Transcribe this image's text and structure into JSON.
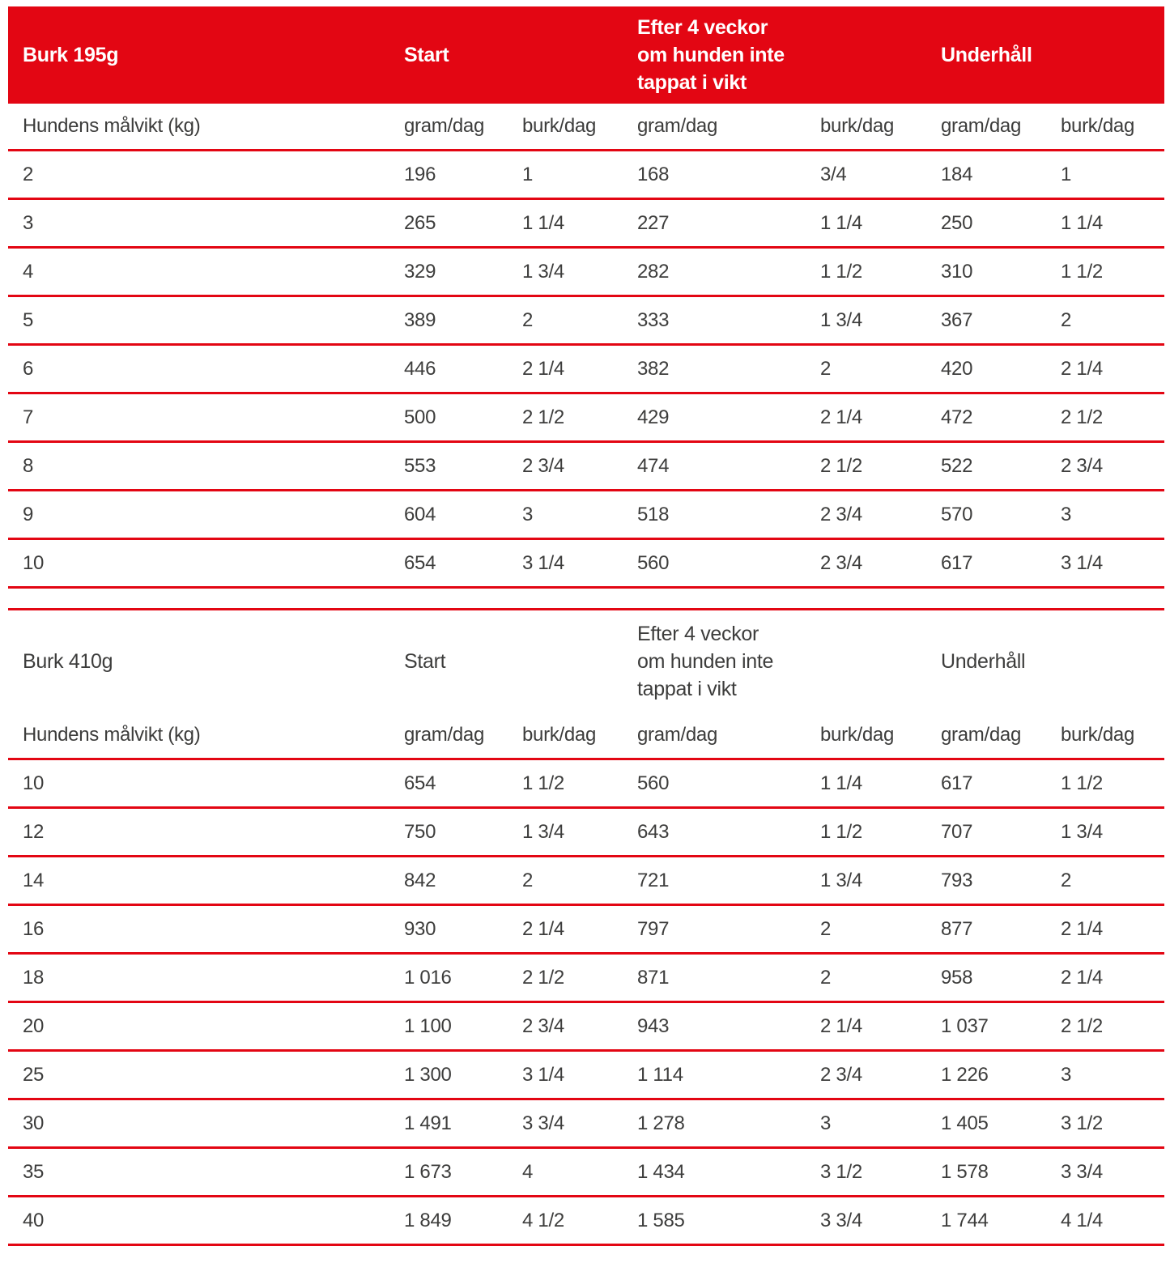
{
  "colors": {
    "accent_red": "#e30613",
    "text_dark": "#3d3d3c",
    "header_text_on_red": "#ffffff"
  },
  "chart_data": [
    {
      "type": "table",
      "title": "Burk 195g",
      "header": {
        "title": "Burk 195g",
        "start": "Start",
        "after_lines": [
          "Efter 4 veckor",
          "om hunden inte",
          "tappat i vikt"
        ],
        "maintenance": "Underhåll"
      },
      "subheader": {
        "weight_label": "Hundens målvikt (kg)",
        "units": [
          "gram/dag",
          "burk/dag",
          "gram/dag",
          "burk/dag",
          "gram/dag",
          "burk/dag"
        ]
      },
      "rows": [
        [
          "2",
          "196",
          "1",
          "168",
          "3/4",
          "184",
          "1"
        ],
        [
          "3",
          "265",
          "1 1/4",
          "227",
          "1 1/4",
          "250",
          "1 1/4"
        ],
        [
          "4",
          "329",
          "1 3/4",
          "282",
          "1 1/2",
          "310",
          "1 1/2"
        ],
        [
          "5",
          "389",
          "2",
          "333",
          "1 3/4",
          "367",
          "2"
        ],
        [
          "6",
          "446",
          "2 1/4",
          "382",
          "2",
          "420",
          "2 1/4"
        ],
        [
          "7",
          "500",
          "2 1/2",
          "429",
          "2 1/4",
          "472",
          "2 1/2"
        ],
        [
          "8",
          "553",
          "2 3/4",
          "474",
          "2 1/2",
          "522",
          "2 3/4"
        ],
        [
          "9",
          "604",
          "3",
          "518",
          "2 3/4",
          "570",
          "3"
        ],
        [
          "10",
          "654",
          "3 1/4",
          "560",
          "2 3/4",
          "617",
          "3 1/4"
        ]
      ]
    },
    {
      "type": "table",
      "title": "Burk 410g",
      "header": {
        "title": "Burk 410g",
        "start": "Start",
        "after_lines": [
          "Efter 4 veckor",
          "om hunden inte",
          "tappat i vikt"
        ],
        "maintenance": "Underhåll"
      },
      "subheader": {
        "weight_label": "Hundens målvikt (kg)",
        "units": [
          "gram/dag",
          "burk/dag",
          "gram/dag",
          "burk/dag",
          "gram/dag",
          "burk/dag"
        ]
      },
      "rows": [
        [
          "10",
          "654",
          "1 1/2",
          "560",
          "1 1/4",
          "617",
          "1 1/2"
        ],
        [
          "12",
          "750",
          "1 3/4",
          "643",
          "1 1/2",
          "707",
          "1 3/4"
        ],
        [
          "14",
          "842",
          "2",
          "721",
          "1 3/4",
          "793",
          "2"
        ],
        [
          "16",
          "930",
          "2 1/4",
          "797",
          "2",
          "877",
          "2 1/4"
        ],
        [
          "18",
          "1 016",
          "2 1/2",
          "871",
          "2",
          "958",
          "2 1/4"
        ],
        [
          "20",
          "1 100",
          "2 3/4",
          "943",
          "2 1/4",
          "1 037",
          "2 1/2"
        ],
        [
          "25",
          "1 300",
          "3 1/4",
          "1 114",
          "2 3/4",
          "1 226",
          "3"
        ],
        [
          "30",
          "1 491",
          "3 3/4",
          "1 278",
          "3",
          "1 405",
          "3 1/2"
        ],
        [
          "35",
          "1 673",
          "4",
          "1 434",
          "3 1/2",
          "1 578",
          "3 3/4"
        ],
        [
          "40",
          "1 849",
          "4 1/2",
          "1 585",
          "3 3/4",
          "1 744",
          "4 1/4"
        ]
      ]
    }
  ]
}
